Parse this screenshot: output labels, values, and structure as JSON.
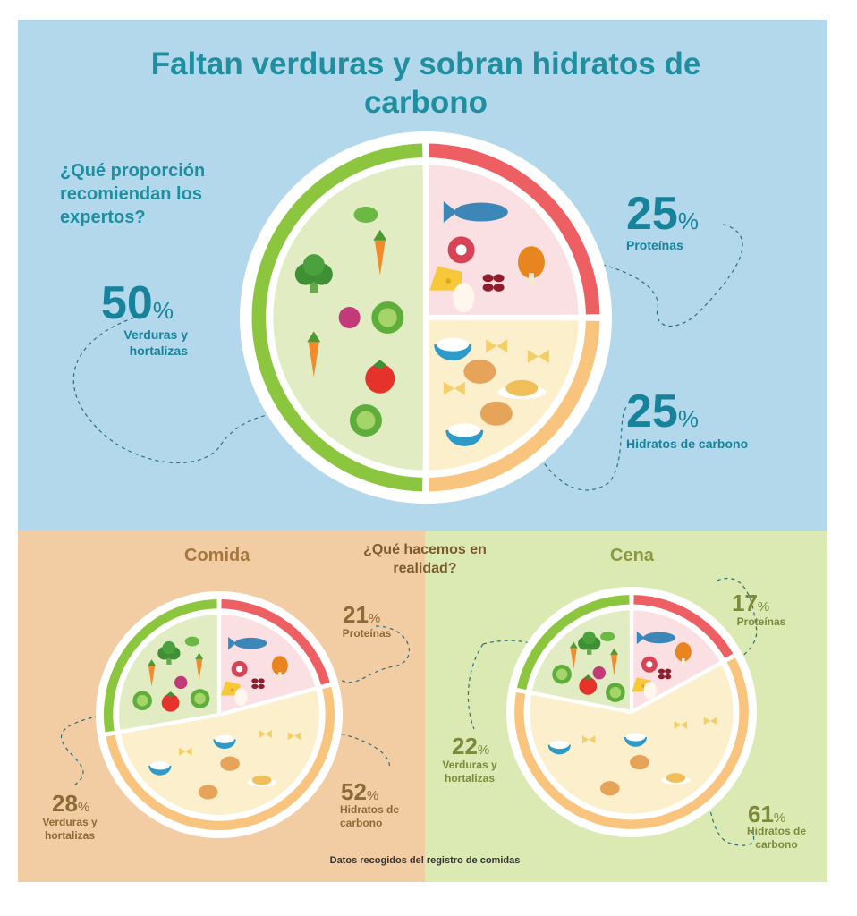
{
  "title": "Faltan verduras y sobran hidratos de carbono",
  "recommended": {
    "question": "¿Qué proporción recomiendan los expertos?",
    "vegetables": {
      "value": 50,
      "label": "Verduras y hortalizas"
    },
    "proteins": {
      "value": 25,
      "label": "Proteínas"
    },
    "carbs": {
      "value": 25,
      "label": "Hidratos de carbono"
    }
  },
  "reality_question": "¿Qué hacemos en realidad?",
  "lunch": {
    "title": "Comida",
    "proteins": {
      "value": 21,
      "label": "Proteínas"
    },
    "vegetables": {
      "value": 28,
      "label": "Verduras y hortalizas"
    },
    "carbs": {
      "value": 52,
      "label": "Hidratos de carbono"
    }
  },
  "dinner": {
    "title": "Cena",
    "proteins": {
      "value": 17,
      "label": "Proteínas"
    },
    "vegetables": {
      "value": 22,
      "label": "Verduras y hortalizas"
    },
    "carbs": {
      "value": 61,
      "label": "Hidratos de carbono"
    }
  },
  "pct_symbol": "%",
  "source_note": "Datos recogidos del registro de comidas",
  "colors": {
    "vegetables": "#8cc63f",
    "proteins": "#ee5f64",
    "carbs": "#f9c57e",
    "veg_fill": "#e1ecc3",
    "prot_fill": "#fbe0e3",
    "carb_fill": "#fcefcc"
  },
  "icons": [
    "fish-icon",
    "meat-icon",
    "drumstick-icon",
    "beans-icon",
    "cheese-icon",
    "egg-icon",
    "lettuce-icon",
    "carrot-icon",
    "broccoli-icon",
    "tomato-icon",
    "leaf-icon",
    "pasta-icon",
    "bread-icon",
    "rice-bowl-icon",
    "spaghetti-icon"
  ]
}
